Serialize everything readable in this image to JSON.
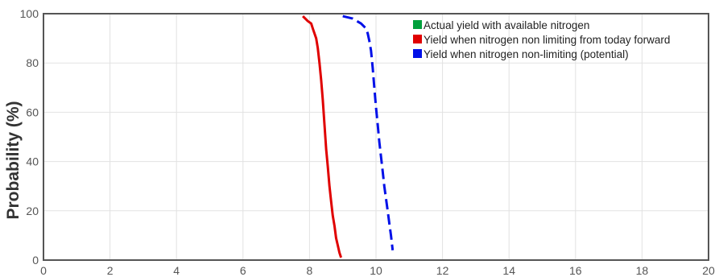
{
  "chart_data": {
    "type": "line",
    "title": "",
    "xlabel": "",
    "ylabel": "Probability (%)",
    "xlim": [
      0,
      20
    ],
    "ylim": [
      0,
      100
    ],
    "x_ticks": [
      0,
      2,
      4,
      6,
      8,
      10,
      12,
      14,
      16,
      18,
      20
    ],
    "y_ticks": [
      0,
      20,
      40,
      60,
      80,
      100
    ],
    "grid": true,
    "legend_position": "top-right",
    "series": [
      {
        "name": "Actual yield with available nitrogen",
        "color": "#00a03c",
        "dash": "solid",
        "x": [],
        "y": []
      },
      {
        "name": "Yield when nitrogen non limiting from today forward",
        "color": "#e00000",
        "dash": "solid",
        "x": [
          7.8,
          7.95,
          8.05,
          8.1,
          8.2,
          8.25,
          8.3,
          8.35,
          8.4,
          8.45,
          8.5,
          8.55,
          8.6,
          8.65,
          8.7,
          8.75,
          8.8,
          8.85,
          8.9,
          8.95
        ],
        "y": [
          99,
          97,
          96,
          94,
          90,
          86,
          80,
          73,
          65,
          55,
          45,
          38,
          30,
          24,
          18,
          14,
          9,
          6,
          3,
          1
        ]
      },
      {
        "name": "Yield when nitrogen non-limiting (potential)",
        "color": "#0010e8",
        "dash": "dashed",
        "x": [
          9.0,
          9.3,
          9.55,
          9.7,
          9.75,
          9.8,
          9.85,
          9.9,
          9.95,
          10.0,
          10.05,
          10.1,
          10.15,
          10.2,
          10.25,
          10.3,
          10.35,
          10.4,
          10.45,
          10.5
        ],
        "y": [
          99,
          98,
          96,
          94,
          92,
          89,
          85,
          78,
          70,
          62,
          55,
          48,
          42,
          36,
          30,
          25,
          20,
          15,
          10,
          4
        ]
      }
    ]
  }
}
